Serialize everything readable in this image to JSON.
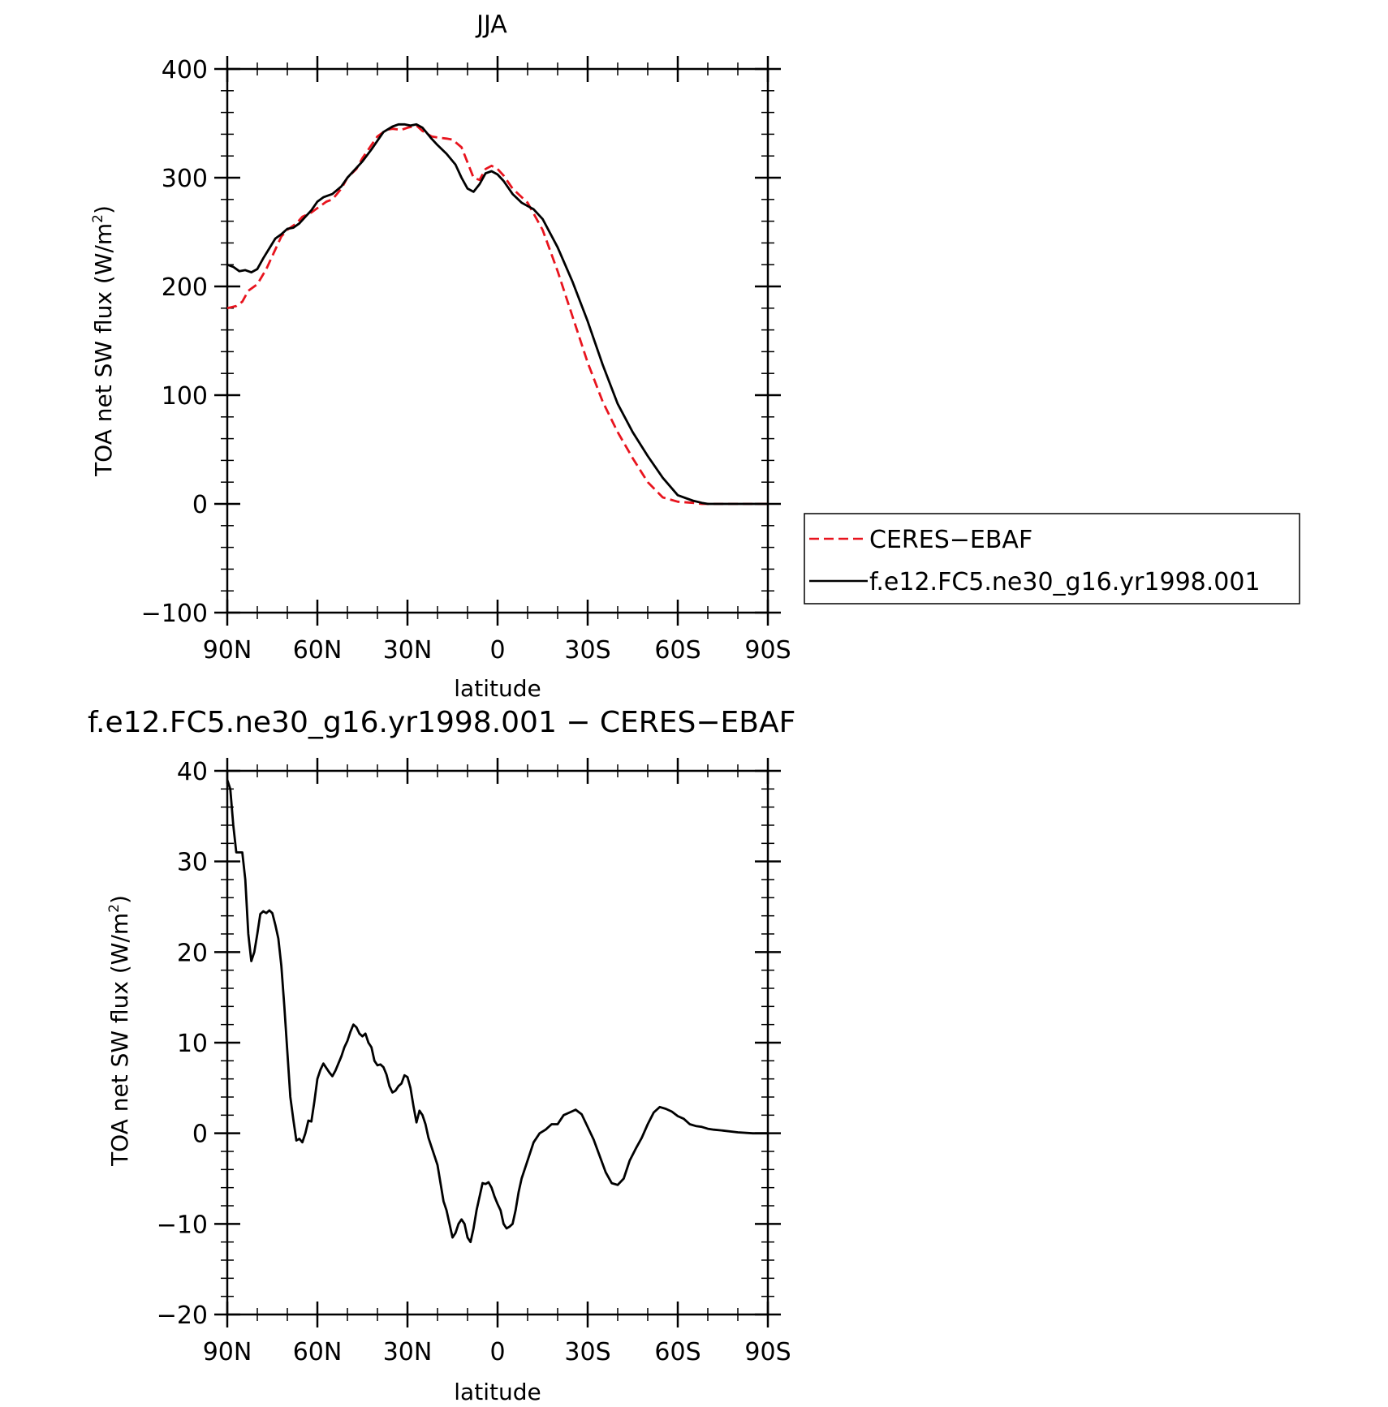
{
  "chart_data": [
    {
      "type": "line",
      "title": "JJA",
      "xlabel": "latitude",
      "ylabel": "TOA net SW flux (W/m",
      "ylabel_sup": "2",
      "ylabel_end": ")",
      "xlim": [
        90,
        -90
      ],
      "ylim": [
        -100,
        400
      ],
      "xticks": [
        90,
        60,
        30,
        0,
        -30,
        -60,
        -90
      ],
      "xtick_labels": [
        "90N",
        "60N",
        "30N",
        "0",
        "30S",
        "60S",
        "90S"
      ],
      "yticks": [
        400,
        300,
        200,
        100,
        0,
        -100
      ],
      "ytick_labels": [
        "400",
        "300",
        "200",
        "100",
        "0",
        "−100"
      ],
      "legend_position": "right",
      "series": [
        {
          "name": "CERES−EBAF",
          "color": "#e8141e",
          "dash": "dashed",
          "x": [
            90,
            87,
            85,
            83,
            80,
            77,
            75,
            72,
            70,
            67,
            65,
            62,
            60,
            57,
            55,
            52,
            50,
            47,
            45,
            42,
            40,
            37,
            35,
            32,
            30,
            27,
            25,
            22,
            20,
            17,
            15,
            12,
            10,
            8,
            6,
            4,
            2,
            0,
            -2,
            -5,
            -10,
            -15,
            -20,
            -25,
            -30,
            -35,
            -40,
            -45,
            -50,
            -55,
            -60,
            -65,
            -68,
            -70,
            -72,
            -75,
            -80,
            -85,
            -90
          ],
          "y": [
            180,
            182,
            186,
            196,
            202,
            216,
            228,
            246,
            252,
            258,
            264,
            268,
            272,
            278,
            280,
            290,
            300,
            308,
            318,
            330,
            338,
            344,
            345,
            344,
            346,
            348,
            343,
            338,
            337,
            336,
            335,
            328,
            314,
            300,
            298,
            308,
            311,
            308,
            302,
            290,
            277,
            252,
            214,
            172,
            130,
            94,
            66,
            42,
            20,
            6,
            2,
            1,
            0,
            0,
            0,
            0,
            0,
            0,
            0
          ]
        },
        {
          "name": "f.e12.FC5.ne30_g16.yr1998.001",
          "color": "#000000",
          "dash": "solid",
          "x": [
            90,
            88,
            86,
            84,
            82,
            80,
            78,
            76,
            74,
            72,
            70,
            68,
            66,
            64,
            62,
            60,
            58,
            55,
            52,
            50,
            48,
            45,
            42,
            40,
            38,
            35,
            33,
            31,
            29,
            27,
            25,
            22,
            20,
            17,
            14,
            12,
            10,
            8,
            6,
            4,
            2,
            0,
            -2,
            -5,
            -8,
            -12,
            -15,
            -20,
            -25,
            -30,
            -35,
            -40,
            -45,
            -50,
            -55,
            -60,
            -65,
            -68,
            -70,
            -72,
            -75,
            -80,
            -85,
            -90
          ],
          "y": [
            220,
            218,
            214,
            215,
            213,
            216,
            226,
            235,
            244,
            248,
            253,
            254,
            258,
            264,
            270,
            278,
            282,
            285,
            292,
            300,
            306,
            315,
            326,
            334,
            342,
            347,
            349,
            349,
            348,
            349,
            346,
            336,
            330,
            322,
            312,
            300,
            290,
            287,
            294,
            304,
            306,
            303,
            297,
            285,
            277,
            271,
            262,
            236,
            204,
            168,
            128,
            92,
            66,
            44,
            24,
            8,
            3,
            1,
            0,
            0,
            0,
            0,
            0,
            0
          ]
        }
      ]
    },
    {
      "type": "line",
      "title": "f.e12.FC5.ne30_g16.yr1998.001 − CERES−EBAF",
      "xlabel": "latitude",
      "ylabel": "TOA net SW flux (W/m",
      "ylabel_sup": "2",
      "ylabel_end": ")",
      "xlim": [
        90,
        -90
      ],
      "ylim": [
        -20,
        40
      ],
      "xticks": [
        90,
        60,
        30,
        0,
        -30,
        -60,
        -90
      ],
      "xtick_labels": [
        "90N",
        "60N",
        "30N",
        "0",
        "30S",
        "60S",
        "90S"
      ],
      "yticks": [
        40,
        30,
        20,
        10,
        0,
        -10,
        -20
      ],
      "ytick_labels": [
        "40",
        "30",
        "20",
        "10",
        "0",
        "−10",
        "−20"
      ],
      "series": [
        {
          "color": "#000000",
          "dash": "solid",
          "x": [
            90,
            89,
            88,
            87,
            86,
            85,
            84,
            83,
            82,
            81,
            80,
            79,
            78,
            77,
            76,
            75,
            74,
            73,
            72,
            71,
            70,
            69,
            68,
            67,
            66,
            65,
            64,
            63,
            62,
            61,
            60,
            59,
            58,
            57,
            56,
            55,
            54,
            53,
            52,
            51,
            50,
            49,
            48,
            47,
            46,
            45,
            44,
            43,
            42,
            41,
            40,
            39,
            38,
            37,
            36,
            35,
            34,
            33,
            32,
            31,
            30,
            29,
            28,
            27,
            26,
            25,
            24,
            23,
            22,
            21,
            20,
            19,
            18,
            17,
            16,
            15,
            14,
            13,
            12,
            11,
            10,
            9,
            8,
            7,
            6,
            5,
            4,
            3,
            2,
            1,
            0,
            -1,
            -2,
            -3,
            -4,
            -5,
            -6,
            -7,
            -8,
            -10,
            -12,
            -14,
            -16,
            -18,
            -20,
            -22,
            -24,
            -26,
            -28,
            -30,
            -32,
            -34,
            -36,
            -38,
            -40,
            -42,
            -44,
            -46,
            -48,
            -50,
            -52,
            -54,
            -56,
            -58,
            -60,
            -62,
            -64,
            -66,
            -68,
            -70,
            -72,
            -75,
            -80,
            -85,
            -90
          ],
          "y": [
            39,
            38,
            34,
            31,
            31,
            31,
            28,
            22,
            19,
            20,
            22,
            24.2,
            24.5,
            24.3,
            24.6,
            24.3,
            23,
            21.5,
            18.5,
            14,
            9,
            4,
            1.5,
            -0.8,
            -0.6,
            -1,
            0,
            1.4,
            1.3,
            3.5,
            6,
            7,
            7.7,
            7.2,
            6.7,
            6.3,
            6.9,
            7.7,
            8.5,
            9.5,
            10.2,
            11.2,
            12,
            11.7,
            11,
            10.7,
            11,
            10,
            9.5,
            8,
            7.5,
            7.6,
            7.3,
            6.5,
            5.2,
            4.5,
            4.7,
            5.2,
            5.5,
            6.4,
            6.2,
            5,
            3,
            1.2,
            2.5,
            2,
            1,
            -0.5,
            -1.5,
            -2.5,
            -3.5,
            -5.5,
            -7.5,
            -8.5,
            -10,
            -11.5,
            -11,
            -10,
            -9.5,
            -10,
            -11.5,
            -12,
            -10.5,
            -8.5,
            -7,
            -5.5,
            -5.6,
            -5.4,
            -6,
            -7,
            -7.8,
            -8.5,
            -10,
            -10.5,
            -10.3,
            -10,
            -8.5,
            -6.5,
            -5,
            -3,
            -1,
            0,
            0.4,
            1,
            1,
            2,
            2.3,
            2.6,
            2.1,
            0.7,
            -0.7,
            -2.5,
            -4.3,
            -5.5,
            -5.7,
            -5,
            -3,
            -1.7,
            -0.5,
            1,
            2.3,
            2.9,
            2.7,
            2.4,
            1.9,
            1.6,
            1,
            0.8,
            0.7,
            0.5,
            0.4,
            0.3,
            0.1,
            0,
            0
          ]
        }
      ]
    }
  ]
}
